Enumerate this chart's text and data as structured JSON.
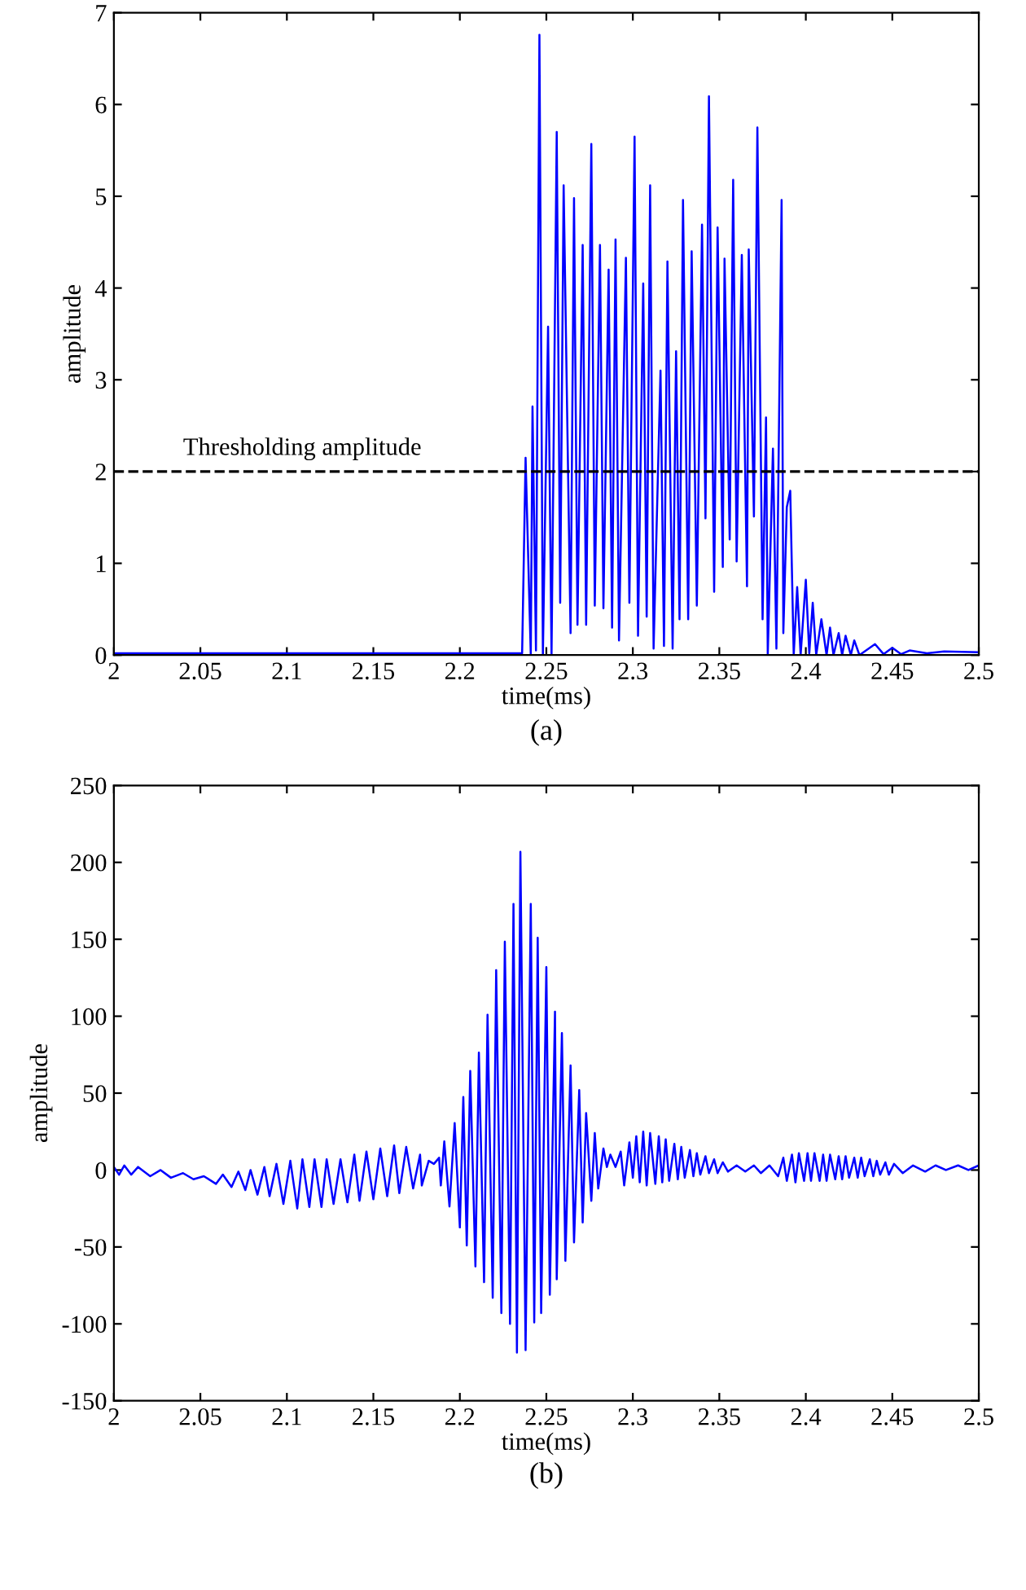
{
  "chart_data": [
    {
      "type": "line",
      "xlabel": "time(ms)",
      "ylabel": "amplitude",
      "annotations": [
        "(a)"
      ],
      "grid": false,
      "legend": false,
      "line_style": "solid",
      "marker": "none",
      "xlim": [
        2,
        2.5
      ],
      "ylim": [
        0,
        7
      ],
      "xticks": [
        2,
        2.05,
        2.1,
        2.15,
        2.2,
        2.25,
        2.3,
        2.35,
        2.4,
        2.45,
        2.5
      ],
      "yticks": [
        0,
        1,
        2,
        3,
        4,
        5,
        6,
        7
      ],
      "ref_lines": [
        {
          "axis": "y",
          "value": 2,
          "label": "Thresholding amplitude",
          "color": "#000000",
          "line_style": "dashed"
        }
      ],
      "series": [
        {
          "color": "#0000ff",
          "x": [
            2,
            2.236,
            2.238,
            2.241,
            2.242,
            2.244,
            2.246,
            2.248,
            2.251,
            2.253,
            2.256,
            2.258,
            2.26,
            2.264,
            2.266,
            2.268,
            2.271,
            2.273,
            2.276,
            2.278,
            2.281,
            2.283,
            2.286,
            2.288,
            2.29,
            2.292,
            2.296,
            2.298,
            2.301,
            2.303,
            2.306,
            2.308,
            2.31,
            2.312,
            2.316,
            2.318,
            2.32,
            2.323,
            2.325,
            2.327,
            2.329,
            2.332,
            2.334,
            2.337,
            2.34,
            2.342,
            2.344,
            2.347,
            2.349,
            2.352,
            2.353,
            2.356,
            2.358,
            2.36,
            2.363,
            2.366,
            2.367,
            2.37,
            2.372,
            2.375,
            2.377,
            2.378,
            2.381,
            2.383,
            2.386,
            2.387,
            2.389,
            2.391,
            2.393,
            2.395,
            2.397,
            2.4,
            2.402,
            2.404,
            2.406,
            2.409,
            2.412,
            2.414,
            2.416,
            2.419,
            2.421,
            2.423,
            2.426,
            2.428,
            2.431,
            2.44,
            2.445,
            2.45,
            2.455,
            2.46,
            2.47,
            2.48,
            2.5
          ],
          "values": [
            0.02,
            0.02,
            2.15,
            0.0,
            2.71,
            0.05,
            6.76,
            0.0,
            3.58,
            0.0,
            5.7,
            0.57,
            5.12,
            0.24,
            4.98,
            0.33,
            4.47,
            0.33,
            5.57,
            0.54,
            4.47,
            0.51,
            4.2,
            0.3,
            4.53,
            0.16,
            4.33,
            0.57,
            5.65,
            0.21,
            4.05,
            0.42,
            5.12,
            0.07,
            3.1,
            0.1,
            4.29,
            0.07,
            3.31,
            0.39,
            4.96,
            0.39,
            4.4,
            0.54,
            4.69,
            1.49,
            6.09,
            0.69,
            4.66,
            0.96,
            4.32,
            1.26,
            5.18,
            1.02,
            4.36,
            0.75,
            4.42,
            1.51,
            5.75,
            0.39,
            2.59,
            0.0,
            2.25,
            0.07,
            4.96,
            0.24,
            1.61,
            1.79,
            0.0,
            0.74,
            0.0,
            0.82,
            0.02,
            0.57,
            0.0,
            0.39,
            0.0,
            0.3,
            0.0,
            0.24,
            0.0,
            0.21,
            0.0,
            0.16,
            0.0,
            0.12,
            0.01,
            0.08,
            0.01,
            0.05,
            0.02,
            0.04,
            0.03
          ]
        }
      ]
    },
    {
      "type": "line",
      "xlabel": "time(ms)",
      "ylabel": "amplitude",
      "annotations": [
        "(b)"
      ],
      "grid": false,
      "legend": false,
      "line_style": "solid",
      "marker": "none",
      "xlim": [
        2,
        2.5
      ],
      "ylim": [
        -150,
        250
      ],
      "xticks": [
        2,
        2.05,
        2.1,
        2.15,
        2.2,
        2.25,
        2.3,
        2.35,
        2.4,
        2.45,
        2.5
      ],
      "yticks": [
        -150,
        -100,
        -50,
        0,
        50,
        100,
        150,
        200,
        250
      ],
      "series": [
        {
          "color": "#0000ff",
          "x": [
            2.0,
            2.003,
            2.006,
            2.01,
            2.014,
            2.021,
            2.027,
            2.033,
            2.04,
            2.046,
            2.052,
            2.059,
            2.063,
            2.068,
            2.072,
            2.076,
            2.079,
            2.083,
            2.087,
            2.09,
            2.094,
            2.098,
            2.102,
            2.106,
            2.109,
            2.113,
            2.116,
            2.12,
            2.123,
            2.127,
            2.131,
            2.135,
            2.139,
            2.142,
            2.146,
            2.15,
            2.154,
            2.158,
            2.162,
            2.165,
            2.169,
            2.173,
            2.177,
            2.178,
            2.182,
            2.185,
            2.188,
            2.189,
            2.191,
            2.194,
            2.197,
            2.2,
            2.202,
            2.204,
            2.206,
            2.209,
            2.211,
            2.214,
            2.216,
            2.219,
            2.221,
            2.224,
            2.226,
            2.229,
            2.231,
            2.233,
            2.235,
            2.238,
            2.241,
            2.243,
            2.245,
            2.247,
            2.25,
            2.252,
            2.255,
            2.256,
            2.259,
            2.261,
            2.264,
            2.266,
            2.269,
            2.271,
            2.273,
            2.276,
            2.278,
            2.28,
            2.283,
            2.285,
            2.287,
            2.29,
            2.293,
            2.295,
            2.298,
            2.3,
            2.302,
            2.304,
            2.306,
            2.308,
            2.31,
            2.313,
            2.315,
            2.317,
            2.319,
            2.321,
            2.324,
            2.326,
            2.328,
            2.33,
            2.333,
            2.335,
            2.337,
            2.339,
            2.342,
            2.344,
            2.347,
            2.349,
            2.352,
            2.355,
            2.36,
            2.365,
            2.37,
            2.374,
            2.379,
            2.384,
            2.387,
            2.389,
            2.392,
            2.394,
            2.396,
            2.399,
            2.401,
            2.403,
            2.405,
            2.408,
            2.41,
            2.412,
            2.414,
            2.417,
            2.419,
            2.421,
            2.423,
            2.425,
            2.428,
            2.43,
            2.432,
            2.434,
            2.437,
            2.439,
            2.441,
            2.443,
            2.446,
            2.448,
            2.451,
            2.456,
            2.462,
            2.469,
            2.475,
            2.481,
            2.488,
            2.494,
            2.5
          ],
          "values": [
            2,
            -3,
            3,
            -3,
            2,
            -4,
            0,
            -5,
            -2,
            -6,
            -4,
            -9,
            -3,
            -11,
            -1,
            -13,
            0,
            -16,
            2,
            -17,
            4,
            -22,
            6,
            -25,
            7,
            -24,
            7,
            -24,
            7,
            -22,
            7,
            -21,
            10,
            -20,
            12,
            -19,
            14,
            -17,
            16,
            -15,
            15,
            -12,
            10,
            -10,
            6,
            4,
            8,
            -10,
            18.6,
            -23.7,
            30.5,
            -37.3,
            47.5,
            -49,
            64.4,
            -62.7,
            76.3,
            -72.9,
            101,
            -83,
            130,
            -93,
            148.5,
            -100,
            173,
            -118.6,
            206.8,
            -117,
            173,
            -99,
            151,
            -93,
            132,
            -81,
            103,
            -71,
            89,
            -59,
            68,
            -47,
            52,
            -34,
            37,
            -20,
            24,
            -12,
            14,
            2,
            10,
            2,
            12,
            -10,
            18,
            -5,
            22,
            -8,
            25,
            -10,
            24,
            -9,
            22,
            -8,
            20,
            -7,
            17,
            -6,
            15,
            -5,
            13,
            -4,
            11,
            -3,
            9,
            -2,
            7,
            -2,
            5,
            -1,
            3,
            -1,
            3,
            -2,
            3,
            -4,
            8,
            -7,
            10,
            -8,
            11,
            -7,
            11,
            -7,
            11,
            -7,
            10,
            -7,
            10,
            -6,
            9,
            -6,
            9,
            -5,
            8,
            -5,
            8,
            -4,
            7,
            -4,
            6,
            -3,
            5,
            -3,
            4,
            -2,
            3,
            -1,
            3,
            0,
            3,
            0,
            3
          ]
        }
      ]
    }
  ]
}
